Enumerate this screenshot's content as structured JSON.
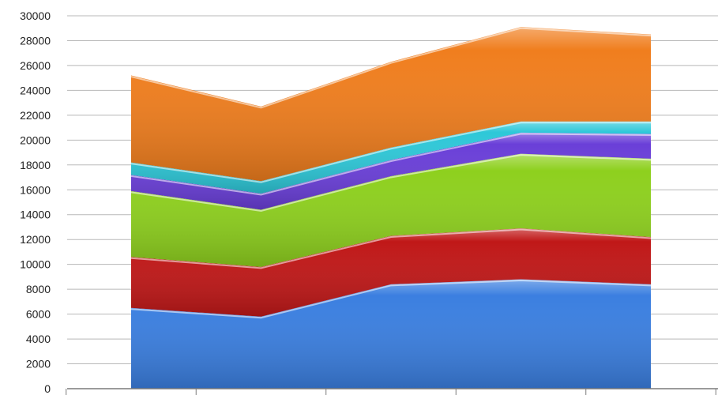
{
  "chart_data": {
    "type": "area",
    "stacked": true,
    "title": "",
    "xlabel": "",
    "ylabel": "",
    "categories": [
      "",
      "",
      "",
      "",
      ""
    ],
    "ylim": [
      0,
      30000
    ],
    "yticks": [
      0,
      2000,
      4000,
      6000,
      8000,
      10000,
      12000,
      14000,
      16000,
      18000,
      20000,
      22000,
      24000,
      26000,
      28000,
      30000
    ],
    "grid": true,
    "legend": "none",
    "series": [
      {
        "color": "#3b7fe0",
        "values": [
          6500,
          5800,
          8400,
          8800,
          8400
        ]
      },
      {
        "color": "#c01818",
        "values": [
          4100,
          4000,
          3900,
          4100,
          3800
        ]
      },
      {
        "color": "#8ed01e",
        "values": [
          5300,
          4600,
          4800,
          6000,
          6300
        ]
      },
      {
        "color": "#6a3fd8",
        "values": [
          1300,
          1300,
          1300,
          1700,
          2000
        ]
      },
      {
        "color": "#2ec8d8",
        "values": [
          1000,
          1000,
          1000,
          900,
          1000
        ]
      },
      {
        "color": "#f07e1e",
        "values": [
          7000,
          6000,
          6900,
          7600,
          7000
        ]
      }
    ]
  }
}
